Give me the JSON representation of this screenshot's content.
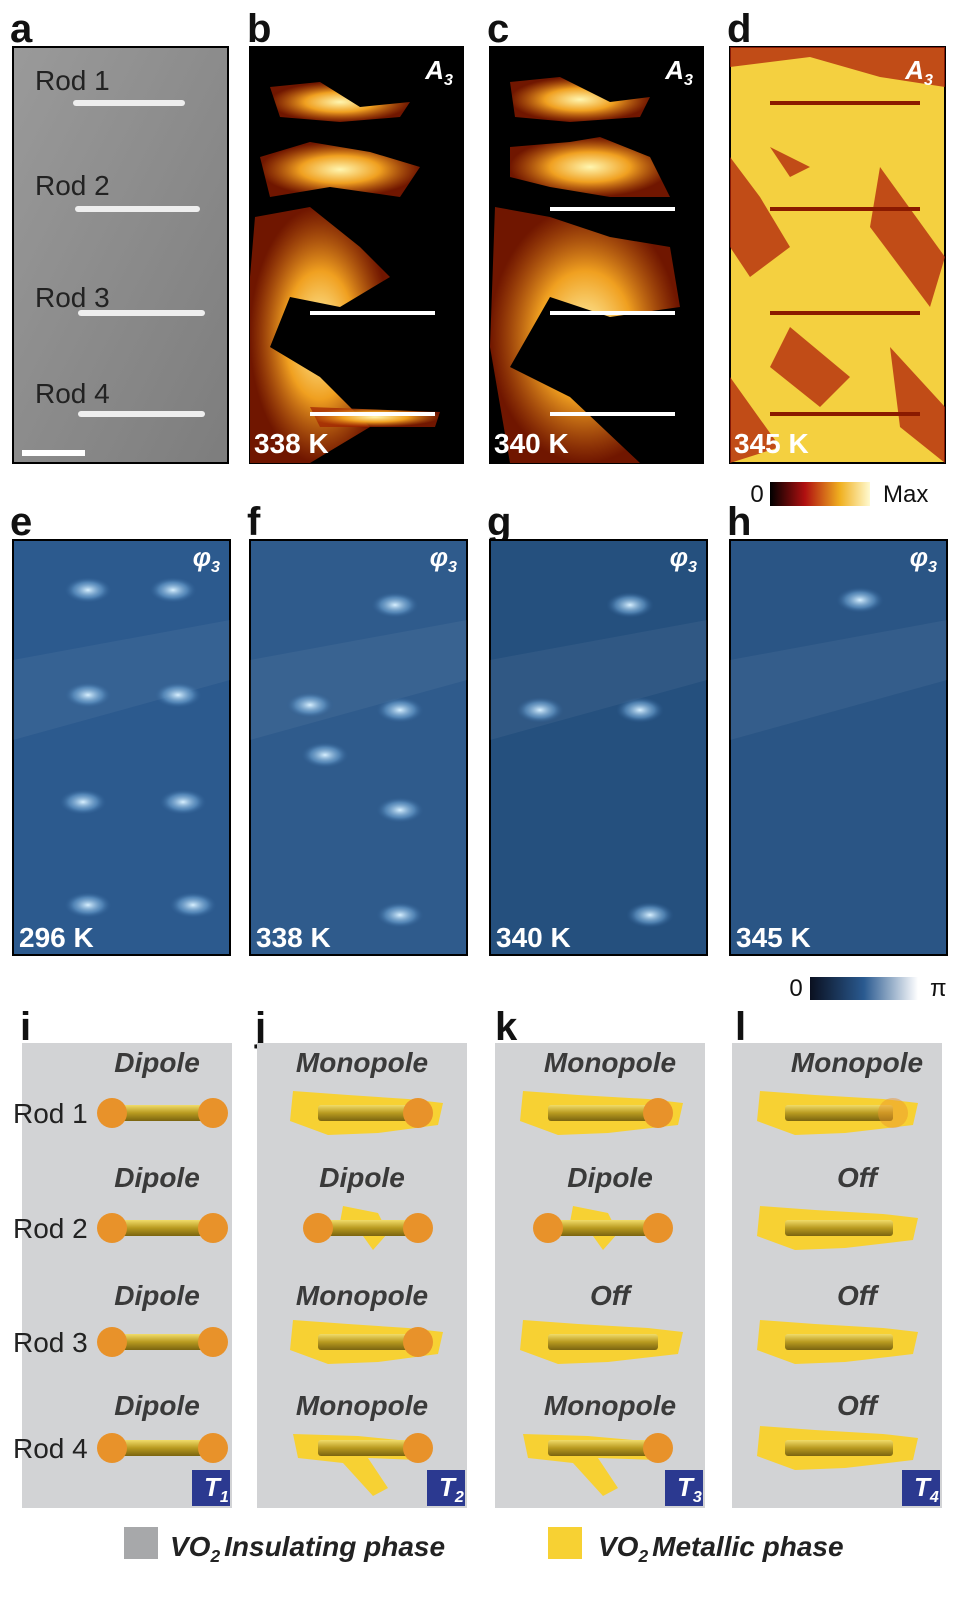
{
  "amplitude_row": {
    "panels": [
      {
        "letter": "a",
        "rod_labels": [
          "Rod 1",
          "Rod 2",
          "Rod 3",
          "Rod 4"
        ]
      },
      {
        "letter": "b",
        "quantity": {
          "symbol": "A",
          "subscript": "3"
        },
        "temperature": "338 K"
      },
      {
        "letter": "c",
        "quantity": {
          "symbol": "A",
          "subscript": "3"
        },
        "temperature": "340 K"
      },
      {
        "letter": "d",
        "quantity": {
          "symbol": "A",
          "subscript": "3"
        },
        "temperature": "345 K"
      }
    ],
    "colorbar": {
      "min_label": "0",
      "max_label": "Max"
    }
  },
  "phase_row": {
    "panels": [
      {
        "letter": "e",
        "quantity": {
          "symbol": "φ",
          "subscript": "3"
        },
        "temperature": "296 K"
      },
      {
        "letter": "f",
        "quantity": {
          "symbol": "φ",
          "subscript": "3"
        },
        "temperature": "338 K"
      },
      {
        "letter": "g",
        "quantity": {
          "symbol": "φ",
          "subscript": "3"
        },
        "temperature": "340 K"
      },
      {
        "letter": "h",
        "quantity": {
          "symbol": "φ",
          "subscript": "3"
        },
        "temperature": "345 K"
      }
    ],
    "colorbar": {
      "min_label": "0",
      "max_label": "π"
    }
  },
  "schematic_row": {
    "rod_labels": [
      "Rod 1",
      "Rod 2",
      "Rod 3",
      "Rod 4"
    ],
    "panels": [
      {
        "letter": "i",
        "modes": [
          "Dipole",
          "Dipole",
          "Dipole",
          "Dipole"
        ],
        "stage": {
          "symbol": "T",
          "subscript": "1"
        }
      },
      {
        "letter": "j",
        "modes": [
          "Monopole",
          "Dipole",
          "Monopole",
          "Monopole"
        ],
        "stage": {
          "symbol": "T",
          "subscript": "2"
        }
      },
      {
        "letter": "k",
        "modes": [
          "Monopole",
          "Dipole",
          "Off",
          "Monopole"
        ],
        "stage": {
          "symbol": "T",
          "subscript": "3"
        }
      },
      {
        "letter": "l",
        "modes": [
          "Monopole",
          "Off",
          "Off",
          "Off"
        ],
        "stage": {
          "symbol": "T",
          "subscript": "4"
        }
      }
    ]
  },
  "legend": [
    {
      "formula": "VO",
      "subscript": "2",
      "text": "Insulating phase"
    },
    {
      "formula": "VO",
      "subscript": "2",
      "text": "Metallic phase"
    }
  ]
}
